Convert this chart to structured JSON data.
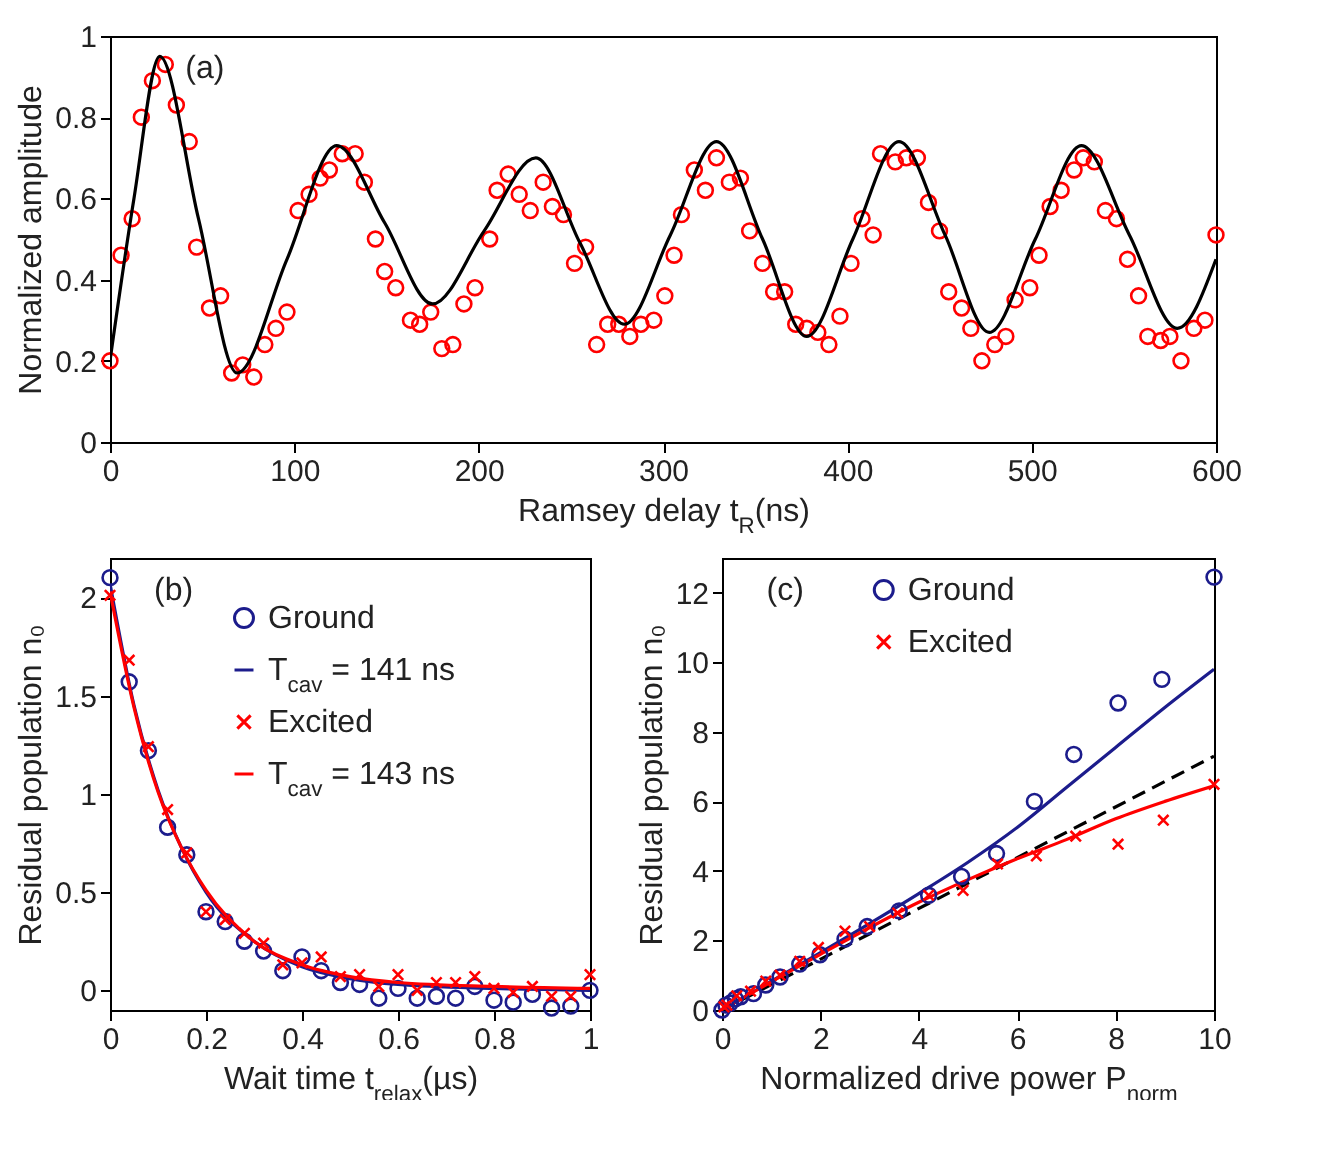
{
  "chart_data": [
    {
      "type": "scatter",
      "xlabel": "Ramsey delay t$_{R}$(ns)",
      "ylabel": "Normalized amplitude",
      "annotations": [
        "(a)"
      ],
      "xlim": [
        0,
        600
      ],
      "ylim": [
        0,
        1
      ],
      "xticks": [
        0,
        100,
        200,
        300,
        400,
        500,
        600
      ],
      "yticks": [
        0,
        0.2,
        0.4,
        0.6,
        0.8,
        1
      ],
      "grid": false,
      "legend": false,
      "series": [
        {
          "type": "scatter",
          "marker": "circle",
          "color": "#ff0000",
          "x": [
            0,
            6,
            12,
            17,
            23,
            30,
            36,
            43,
            47,
            54,
            60,
            66,
            72,
            78,
            84,
            90,
            96,
            102,
            108,
            114,
            119,
            126,
            133,
            138,
            144,
            149,
            155,
            163,
            168,
            174,
            180,
            186,
            192,
            198,
            206,
            210,
            216,
            222,
            228,
            235,
            240,
            246,
            252,
            258,
            264,
            270,
            276,
            282,
            288,
            295,
            301,
            306,
            310,
            317,
            323,
            329,
            336,
            342,
            347,
            354,
            360,
            366,
            372,
            378,
            384,
            390,
            396,
            402,
            408,
            414,
            418,
            426,
            432,
            438,
            444,
            450,
            455,
            462,
            467,
            473,
            480,
            486,
            491,
            499,
            504,
            510,
            516,
            523,
            528,
            534,
            540,
            546,
            552,
            558,
            563,
            570,
            575,
            581,
            588,
            594,
            600
          ],
          "values": [
            0.2,
            0.46,
            0.55,
            0.8,
            0.89,
            0.93,
            0.83,
            0.74,
            0.48,
            0.33,
            0.36,
            0.17,
            0.19,
            0.16,
            0.24,
            0.28,
            0.32,
            0.57,
            0.61,
            0.65,
            0.67,
            0.71,
            0.71,
            0.64,
            0.5,
            0.42,
            0.38,
            0.3,
            0.29,
            0.32,
            0.23,
            0.24,
            0.34,
            0.38,
            0.5,
            0.62,
            0.66,
            0.61,
            0.57,
            0.64,
            0.58,
            0.56,
            0.44,
            0.48,
            0.24,
            0.29,
            0.29,
            0.26,
            0.29,
            0.3,
            0.36,
            0.46,
            0.56,
            0.67,
            0.62,
            0.7,
            0.64,
            0.65,
            0.52,
            0.44,
            0.37,
            0.37,
            0.29,
            0.28,
            0.27,
            0.24,
            0.31,
            0.44,
            0.55,
            0.51,
            0.71,
            0.69,
            0.7,
            0.7,
            0.59,
            0.52,
            0.37,
            0.33,
            0.28,
            0.2,
            0.24,
            0.26,
            0.35,
            0.38,
            0.46,
            0.58,
            0.62,
            0.67,
            0.7,
            0.69,
            0.57,
            0.55,
            0.45,
            0.36,
            0.26,
            0.25,
            0.26,
            0.2,
            0.28,
            0.3,
            0.51
          ]
        },
        {
          "type": "line",
          "marker": "none",
          "line_style": "solid",
          "color": "#000000",
          "x": [
            0,
            13,
            27,
            48,
            69,
            96,
            123,
            149,
            175,
            203,
            231,
            255,
            279,
            304,
            329,
            354,
            378,
            403,
            428,
            453,
            477,
            502,
            527,
            553,
            579,
            600
          ],
          "values": [
            0.2,
            0.6,
            0.95,
            0.55,
            0.17,
            0.45,
            0.73,
            0.54,
            0.34,
            0.52,
            0.7,
            0.49,
            0.29,
            0.51,
            0.74,
            0.5,
            0.26,
            0.5,
            0.74,
            0.51,
            0.27,
            0.5,
            0.73,
            0.51,
            0.28,
            0.45
          ]
        }
      ]
    },
    {
      "type": "scatter",
      "xlabel": "Wait time t$_{relax}$(µs)",
      "ylabel": "Residual population n₀",
      "annotations": [
        "(b)"
      ],
      "xlim": [
        0,
        1
      ],
      "ylim": [
        -0.1,
        2.2
      ],
      "xticks": [
        0,
        0.2,
        0.4,
        0.6,
        0.8,
        1
      ],
      "yticks": [
        0,
        0.5,
        1,
        1.5,
        2
      ],
      "grid": false,
      "legend": "top right",
      "series": [
        {
          "type": "scatter",
          "name": "Ground",
          "marker": "circle",
          "color": "#1c1c8c",
          "x": [
            0,
            0.04,
            0.08,
            0.12,
            0.16,
            0.2,
            0.24,
            0.28,
            0.32,
            0.36,
            0.4,
            0.44,
            0.48,
            0.52,
            0.56,
            0.6,
            0.64,
            0.68,
            0.72,
            0.76,
            0.8,
            0.84,
            0.88,
            0.92,
            0.96,
            1
          ],
          "values": [
            2.1,
            1.57,
            1.22,
            0.83,
            0.69,
            0.4,
            0.35,
            0.25,
            0.2,
            0.1,
            0.17,
            0.1,
            0.04,
            0.03,
            -0.04,
            0.01,
            -0.04,
            -0.03,
            -0.04,
            0.02,
            -0.05,
            -0.06,
            -0.02,
            -0.09,
            -0.08,
            0
          ]
        },
        {
          "type": "line",
          "name": "T$_{cav}$ = 141 ns",
          "marker": "none",
          "line_style": "solid",
          "color": "#1c1c8c",
          "x": [
            0,
            0.05,
            0.1,
            0.15,
            0.2,
            0.3,
            0.4,
            0.5,
            0.6,
            0.8,
            1
          ],
          "values": [
            2.07,
            1.45,
            1.02,
            0.72,
            0.5,
            0.25,
            0.12,
            0.06,
            0.03,
            0.01,
            0
          ]
        },
        {
          "type": "scatter",
          "name": "Excited",
          "marker": "cross",
          "color": "#ff0000",
          "x": [
            0,
            0.04,
            0.08,
            0.12,
            0.16,
            0.2,
            0.24,
            0.28,
            0.32,
            0.36,
            0.4,
            0.44,
            0.48,
            0.52,
            0.56,
            0.6,
            0.64,
            0.68,
            0.72,
            0.76,
            0.8,
            0.84,
            0.88,
            0.92,
            0.96,
            1
          ],
          "values": [
            2.01,
            1.68,
            1.24,
            0.92,
            0.7,
            0.4,
            0.36,
            0.29,
            0.24,
            0.13,
            0.14,
            0.17,
            0.07,
            0.08,
            0.02,
            0.08,
            0,
            0.04,
            0.04,
            0.07,
            0.01,
            -0.01,
            0.02,
            -0.03,
            -0.03,
            0.08
          ]
        },
        {
          "type": "line",
          "name": "T$_{cav}$ = 143 ns",
          "marker": "none",
          "line_style": "solid",
          "color": "#ff0000",
          "x": [
            0,
            0.05,
            0.1,
            0.15,
            0.2,
            0.3,
            0.4,
            0.5,
            0.6,
            0.8,
            1
          ],
          "values": [
            2.03,
            1.44,
            1.01,
            0.72,
            0.51,
            0.25,
            0.13,
            0.07,
            0.04,
            0.02,
            0.01
          ]
        }
      ]
    },
    {
      "type": "scatter",
      "xlabel": "Normalized drive power P$_{norm}$",
      "ylabel": "Residual population n₀",
      "annotations": [
        "(c)"
      ],
      "xlim": [
        0,
        10
      ],
      "ylim": [
        0,
        13
      ],
      "xticks": [
        0,
        2,
        4,
        6,
        8,
        10
      ],
      "yticks": [
        0,
        2,
        4,
        6,
        8,
        10,
        12
      ],
      "grid": false,
      "legend": "top",
      "series": [
        {
          "type": "line",
          "marker": "none",
          "line_style": "dashed",
          "color": "#000000",
          "x": [
            0,
            10
          ],
          "values": [
            0,
            7.3
          ]
        },
        {
          "type": "line",
          "marker": "none",
          "line_style": "solid",
          "color": "#1c1c8c",
          "x": [
            0,
            2,
            4,
            5,
            6,
            7,
            8,
            9,
            10
          ],
          "values": [
            0,
            1.65,
            3.35,
            4.25,
            5.25,
            6.4,
            7.55,
            8.7,
            9.8
          ]
        },
        {
          "type": "line",
          "marker": "none",
          "line_style": "solid",
          "color": "#ff0000",
          "x": [
            0,
            2,
            4,
            5,
            6,
            7,
            8,
            9,
            10
          ],
          "values": [
            0,
            1.6,
            3.1,
            3.75,
            4.35,
            4.9,
            5.5,
            6,
            6.45
          ]
        },
        {
          "type": "scatter",
          "name": "Ground",
          "marker": "circle",
          "color": "#1c1c8c",
          "x": [
            0,
            0.08,
            0.17,
            0.27,
            0.38,
            0.64,
            0.89,
            1.18,
            1.58,
            1.99,
            2.5,
            2.95,
            3.6,
            4.2,
            4.87,
            5.58,
            6.35,
            7.15,
            8.05,
            8.94,
            10
          ],
          "values": [
            0,
            0.14,
            0.2,
            0.32,
            0.38,
            0.47,
            0.72,
            0.95,
            1.32,
            1.59,
            2.04,
            2.4,
            2.85,
            3.3,
            3.84,
            4.5,
            6,
            7.35,
            8.83,
            9.51,
            12.45
          ]
        },
        {
          "type": "scatter",
          "name": "Excited",
          "marker": "cross",
          "color": "#ff0000",
          "x": [
            0.04,
            0.1,
            0.3,
            0.58,
            0.89,
            1.18,
            1.58,
            1.96,
            2.5,
            3,
            3.57,
            4.2,
            4.9,
            5.6,
            6.39,
            7.19,
            8.05,
            8.97,
            10
          ],
          "values": [
            0.09,
            0.14,
            0.41,
            0.54,
            0.83,
            1,
            1.4,
            1.8,
            2.27,
            2.4,
            2.79,
            3.3,
            3.44,
            4.2,
            4.43,
            5,
            4.77,
            5.46,
            6.49
          ]
        }
      ]
    }
  ]
}
